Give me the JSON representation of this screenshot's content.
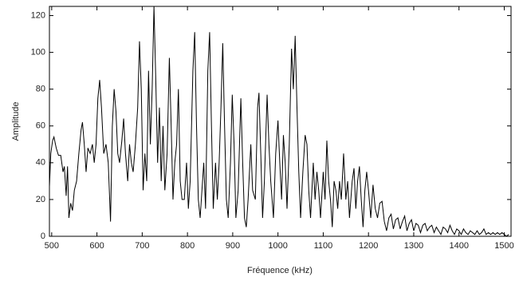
{
  "chart_data": {
    "type": "line",
    "x_label": "Fréquence (kHz)",
    "y_label": "Amplitude",
    "xlim": [
      495,
      1515
    ],
    "ylim": [
      0,
      125
    ],
    "xticks": [
      500,
      600,
      700,
      800,
      900,
      1000,
      1100,
      1200,
      1300,
      1400,
      1500
    ],
    "yticks": [
      0,
      20,
      40,
      60,
      80,
      100,
      120
    ],
    "grid": false,
    "series": [
      {
        "color": "#000000",
        "x": [
          495,
          498,
          502,
          505,
          510,
          515,
          520,
          525,
          528,
          532,
          535,
          538,
          542,
          546,
          550,
          555,
          560,
          565,
          568,
          572,
          576,
          580,
          585,
          590,
          594,
          598,
          602,
          606,
          610,
          615,
          620,
          625,
          630,
          634,
          638,
          642,
          646,
          650,
          655,
          659,
          663,
          668,
          672,
          676,
          680,
          685,
          690,
          694,
          698,
          702,
          706,
          710,
          714,
          718,
          722,
          726,
          730,
          734,
          738,
          742,
          746,
          750,
          755,
          760,
          764,
          768,
          772,
          776,
          780,
          784,
          788,
          793,
          798,
          802,
          806,
          812,
          816,
          820,
          824,
          828,
          832,
          836,
          840,
          845,
          849,
          853,
          857,
          862,
          866,
          870,
          874,
          878,
          882,
          886,
          890,
          895,
          899,
          903,
          907,
          912,
          918,
          922,
          926,
          930,
          934,
          940,
          944,
          950,
          955,
          958,
          962,
          966,
          970,
          976,
          980,
          984,
          990,
          995,
          1000,
          1004,
          1008,
          1012,
          1016,
          1020,
          1025,
          1030,
          1034,
          1038,
          1042,
          1046,
          1050,
          1055,
          1060,
          1064,
          1068,
          1072,
          1078,
          1082,
          1086,
          1090,
          1094,
          1100,
          1104,
          1108,
          1112,
          1116,
          1120,
          1124,
          1128,
          1132,
          1136,
          1140,
          1145,
          1150,
          1154,
          1158,
          1164,
          1168,
          1172,
          1176,
          1180,
          1184,
          1188,
          1192,
          1196,
          1200,
          1205,
          1210,
          1215,
          1220,
          1225,
          1230,
          1235,
          1240,
          1245,
          1250,
          1255,
          1260,
          1265,
          1270,
          1275,
          1280,
          1285,
          1290,
          1295,
          1300,
          1305,
          1310,
          1315,
          1320,
          1325,
          1330,
          1335,
          1340,
          1345,
          1350,
          1355,
          1360,
          1365,
          1370,
          1375,
          1380,
          1385,
          1390,
          1395,
          1400,
          1405,
          1410,
          1415,
          1420,
          1425,
          1430,
          1435,
          1440,
          1445,
          1450,
          1455,
          1460,
          1465,
          1470,
          1475,
          1480,
          1485,
          1490,
          1495,
          1500,
          1505,
          1510
        ],
        "values": [
          27,
          45,
          52,
          54,
          48,
          44,
          44,
          35,
          38,
          22,
          38,
          10,
          18,
          14,
          25,
          30,
          45,
          58,
          62,
          50,
          35,
          48,
          45,
          50,
          40,
          50,
          75,
          85,
          70,
          45,
          50,
          40,
          8,
          60,
          80,
          68,
          45,
          40,
          52,
          64,
          45,
          30,
          50,
          40,
          35,
          50,
          70,
          106,
          80,
          25,
          45,
          30,
          90,
          50,
          80,
          125,
          85,
          40,
          70,
          30,
          60,
          25,
          45,
          97,
          60,
          20,
          40,
          50,
          80,
          30,
          20,
          20,
          40,
          15,
          30,
          90,
          111,
          60,
          20,
          10,
          25,
          40,
          15,
          90,
          111,
          60,
          15,
          40,
          20,
          40,
          70,
          105,
          60,
          20,
          10,
          40,
          77,
          50,
          10,
          25,
          75,
          40,
          10,
          5,
          20,
          50,
          25,
          20,
          70,
          78,
          45,
          10,
          30,
          77,
          50,
          30,
          10,
          45,
          63,
          40,
          20,
          55,
          40,
          15,
          50,
          102,
          80,
          109,
          70,
          35,
          10,
          35,
          55,
          50,
          25,
          10,
          40,
          20,
          35,
          25,
          10,
          35,
          20,
          52,
          30,
          20,
          5,
          30,
          25,
          15,
          30,
          20,
          45,
          20,
          30,
          10,
          30,
          37,
          15,
          30,
          38,
          20,
          5,
          25,
          35,
          25,
          10,
          28,
          15,
          10,
          18,
          19,
          8,
          3,
          10,
          12,
          4,
          9,
          10,
          4,
          8,
          11,
          3,
          7,
          9,
          3,
          7,
          6,
          2,
          6,
          7,
          3,
          5,
          6,
          2,
          5,
          3,
          1,
          5,
          4,
          2,
          6,
          3,
          1,
          4,
          3,
          1,
          4,
          2,
          1,
          3,
          2,
          1,
          3,
          1,
          2,
          4,
          1,
          2,
          1,
          2,
          1,
          2,
          1,
          2,
          1,
          0,
          1
        ]
      }
    ]
  }
}
